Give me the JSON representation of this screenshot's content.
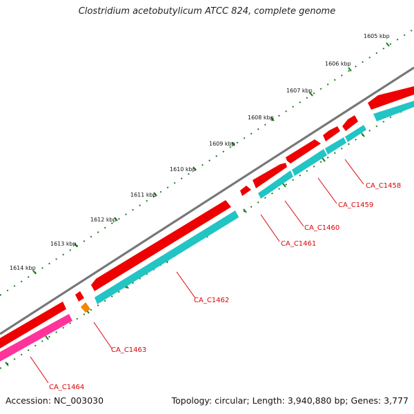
{
  "title": "Clostridium acetobutylicum ATCC 824, complete genome",
  "footer": {
    "accession": "Accession: NC_003030",
    "summary": "Topology: circular; Length: 3,940,880 bp; Genes: 3,777"
  },
  "scale_labels": [
    "1605 kbp",
    "1606 kbp",
    "1607 kbp",
    "1608 kbp",
    "1609 kbp",
    "1610 kbp",
    "1611 kbp",
    "1612 kbp",
    "1613 kbp",
    "1614 kbp"
  ],
  "genes": [
    {
      "name": "CA_C1458",
      "color": "#ee0000",
      "strand_color": "#22c4c4"
    },
    {
      "name": "CA_C1459",
      "color": "#ee0000",
      "strand_color": "#22c4c4"
    },
    {
      "name": "CA_C1460",
      "color": "#ee0000",
      "strand_color": "#22c4c4"
    },
    {
      "name": "CA_C1461",
      "color": "#ee0000",
      "strand_color": "#22c4c4"
    },
    {
      "name": "CA_C1462",
      "color": "#ee0000",
      "strand_color": "#22c4c4"
    },
    {
      "name": "CA_C1463",
      "color": "#ee0000",
      "strand_color": "#ee8800"
    },
    {
      "name": "CA_C1464",
      "color": "#ee0000",
      "strand_color": "#ff3399"
    }
  ],
  "colors": {
    "backbone": "#777777",
    "cds": "#ee0000",
    "cog_teal": "#22c4c4",
    "cog_orange": "#ee8800",
    "cog_pink": "#ff3399",
    "tick": "#1a7a1a",
    "label": "#dd0000"
  }
}
